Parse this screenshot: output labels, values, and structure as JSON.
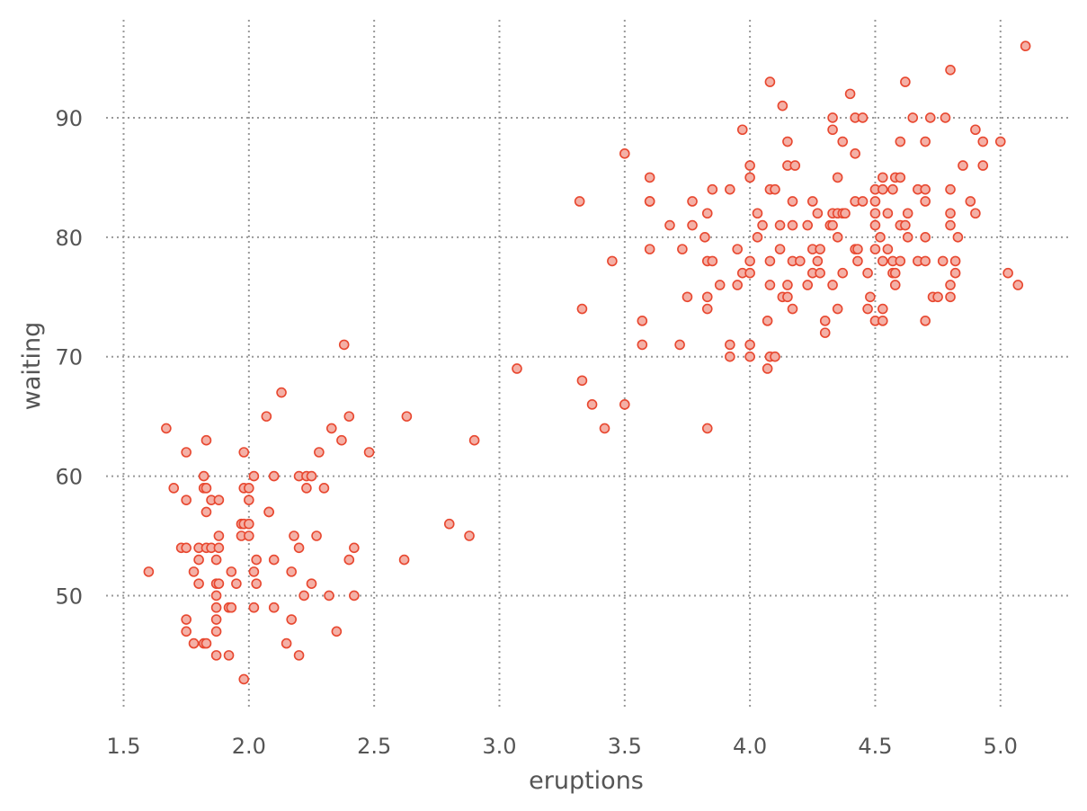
{
  "colors": {
    "marker_edge": "#e8472f",
    "marker_fill": "#f4b0a6",
    "grid": "#999999",
    "text": "#555555",
    "background": "#ffffff"
  },
  "chart_data": {
    "type": "scatter",
    "title": "",
    "xlabel": "eruptions",
    "ylabel": "waiting",
    "xlim": [
      1.43,
      5.27
    ],
    "ylim": [
      40.4,
      98.2
    ],
    "xticks": [
      1.5,
      2.0,
      2.5,
      3.0,
      3.5,
      4.0,
      4.5,
      5.0
    ],
    "xtick_labels": [
      "1.5",
      "2.0",
      "2.5",
      "3.0",
      "3.5",
      "4.0",
      "4.5",
      "5.0"
    ],
    "yticks": [
      50,
      60,
      70,
      80,
      90
    ],
    "ytick_labels": [
      "50",
      "60",
      "70",
      "80",
      "90"
    ],
    "grid": true,
    "legend": "none",
    "series": [
      {
        "points": [
          [
            1.6,
            52
          ],
          [
            1.67,
            64
          ],
          [
            1.7,
            59
          ],
          [
            1.73,
            54
          ],
          [
            1.75,
            54
          ],
          [
            1.75,
            62
          ],
          [
            1.75,
            58
          ],
          [
            1.75,
            48
          ],
          [
            1.75,
            47
          ],
          [
            1.78,
            52
          ],
          [
            1.78,
            46
          ],
          [
            1.8,
            54
          ],
          [
            1.8,
            53
          ],
          [
            1.8,
            51
          ],
          [
            1.82,
            60
          ],
          [
            1.82,
            59
          ],
          [
            1.82,
            46
          ],
          [
            1.83,
            63
          ],
          [
            1.83,
            59
          ],
          [
            1.83,
            57
          ],
          [
            1.83,
            54
          ],
          [
            1.83,
            46
          ],
          [
            1.85,
            58
          ],
          [
            1.85,
            54
          ],
          [
            1.87,
            53
          ],
          [
            1.87,
            51
          ],
          [
            1.87,
            50
          ],
          [
            1.87,
            49
          ],
          [
            1.87,
            48
          ],
          [
            1.87,
            47
          ],
          [
            1.87,
            45
          ],
          [
            1.88,
            58
          ],
          [
            1.88,
            55
          ],
          [
            1.88,
            54
          ],
          [
            1.88,
            51
          ],
          [
            1.92,
            49
          ],
          [
            1.92,
            45
          ],
          [
            1.93,
            52
          ],
          [
            1.93,
            49
          ],
          [
            1.95,
            51
          ],
          [
            1.97,
            56
          ],
          [
            1.97,
            55
          ],
          [
            1.98,
            62
          ],
          [
            1.98,
            59
          ],
          [
            1.98,
            56
          ],
          [
            1.98,
            43
          ],
          [
            2.0,
            59
          ],
          [
            2.0,
            58
          ],
          [
            2.0,
            56
          ],
          [
            2.0,
            55
          ],
          [
            2.02,
            60
          ],
          [
            2.02,
            52
          ],
          [
            2.02,
            49
          ],
          [
            2.03,
            53
          ],
          [
            2.03,
            51
          ],
          [
            2.07,
            65
          ],
          [
            2.08,
            57
          ],
          [
            2.08,
            57
          ],
          [
            2.1,
            60
          ],
          [
            2.1,
            53
          ],
          [
            2.1,
            49
          ],
          [
            2.13,
            67
          ],
          [
            2.15,
            46
          ],
          [
            2.17,
            52
          ],
          [
            2.17,
            48
          ],
          [
            2.18,
            55
          ],
          [
            2.2,
            60
          ],
          [
            2.2,
            54
          ],
          [
            2.2,
            45
          ],
          [
            2.22,
            50
          ],
          [
            2.23,
            60
          ],
          [
            2.23,
            59
          ],
          [
            2.25,
            60
          ],
          [
            2.25,
            51
          ],
          [
            2.27,
            55
          ],
          [
            2.28,
            62
          ],
          [
            2.3,
            59
          ],
          [
            2.32,
            50
          ],
          [
            2.33,
            64
          ],
          [
            2.35,
            47
          ],
          [
            2.37,
            63
          ],
          [
            2.38,
            71
          ],
          [
            2.4,
            65
          ],
          [
            2.4,
            53
          ],
          [
            2.42,
            54
          ],
          [
            2.42,
            50
          ],
          [
            2.48,
            62
          ],
          [
            2.62,
            53
          ],
          [
            2.63,
            65
          ],
          [
            2.8,
            56
          ],
          [
            2.88,
            55
          ],
          [
            2.9,
            63
          ],
          [
            3.07,
            69
          ],
          [
            3.32,
            83
          ],
          [
            3.33,
            74
          ],
          [
            3.33,
            68
          ],
          [
            3.37,
            66
          ],
          [
            3.42,
            64
          ],
          [
            3.45,
            78
          ],
          [
            3.5,
            87
          ],
          [
            3.5,
            66
          ],
          [
            3.57,
            73
          ],
          [
            3.57,
            71
          ],
          [
            3.6,
            85
          ],
          [
            3.6,
            83
          ],
          [
            3.6,
            83
          ],
          [
            3.6,
            79
          ],
          [
            3.68,
            81
          ],
          [
            3.72,
            71
          ],
          [
            3.73,
            79
          ],
          [
            3.75,
            75
          ],
          [
            3.77,
            83
          ],
          [
            3.77,
            81
          ],
          [
            3.82,
            80
          ],
          [
            3.83,
            82
          ],
          [
            3.83,
            78
          ],
          [
            3.83,
            75
          ],
          [
            3.83,
            74
          ],
          [
            3.83,
            64
          ],
          [
            3.85,
            84
          ],
          [
            3.85,
            78
          ],
          [
            3.88,
            76
          ],
          [
            3.92,
            84
          ],
          [
            3.92,
            71
          ],
          [
            3.92,
            70
          ],
          [
            3.95,
            79
          ],
          [
            3.95,
            76
          ],
          [
            3.97,
            89
          ],
          [
            3.97,
            77
          ],
          [
            4.0,
            86
          ],
          [
            4.0,
            85
          ],
          [
            4.0,
            78
          ],
          [
            4.0,
            77
          ],
          [
            4.0,
            71
          ],
          [
            4.0,
            70
          ],
          [
            4.03,
            82
          ],
          [
            4.03,
            80
          ],
          [
            4.05,
            81
          ],
          [
            4.07,
            73
          ],
          [
            4.07,
            69
          ],
          [
            4.08,
            93
          ],
          [
            4.08,
            84
          ],
          [
            4.08,
            78
          ],
          [
            4.08,
            76
          ],
          [
            4.08,
            70
          ],
          [
            4.1,
            84
          ],
          [
            4.1,
            70
          ],
          [
            4.12,
            81
          ],
          [
            4.12,
            79
          ],
          [
            4.13,
            91
          ],
          [
            4.13,
            75
          ],
          [
            4.15,
            88
          ],
          [
            4.15,
            86
          ],
          [
            4.15,
            76
          ],
          [
            4.15,
            75
          ],
          [
            4.17,
            83
          ],
          [
            4.17,
            81
          ],
          [
            4.17,
            78
          ],
          [
            4.17,
            74
          ],
          [
            4.18,
            86
          ],
          [
            4.2,
            78
          ],
          [
            4.23,
            81
          ],
          [
            4.23,
            76
          ],
          [
            4.25,
            83
          ],
          [
            4.25,
            79
          ],
          [
            4.25,
            77
          ],
          [
            4.27,
            82
          ],
          [
            4.27,
            78
          ],
          [
            4.28,
            79
          ],
          [
            4.28,
            77
          ],
          [
            4.3,
            73
          ],
          [
            4.3,
            72
          ],
          [
            4.32,
            81
          ],
          [
            4.33,
            90
          ],
          [
            4.33,
            89
          ],
          [
            4.33,
            82
          ],
          [
            4.33,
            81
          ],
          [
            4.33,
            76
          ],
          [
            4.35,
            85
          ],
          [
            4.35,
            82
          ],
          [
            4.35,
            80
          ],
          [
            4.35,
            74
          ],
          [
            4.37,
            88
          ],
          [
            4.37,
            82
          ],
          [
            4.37,
            77
          ],
          [
            4.38,
            82
          ],
          [
            4.4,
            92
          ],
          [
            4.42,
            90
          ],
          [
            4.42,
            87
          ],
          [
            4.42,
            83
          ],
          [
            4.42,
            79
          ],
          [
            4.43,
            79
          ],
          [
            4.43,
            78
          ],
          [
            4.45,
            90
          ],
          [
            4.45,
            83
          ],
          [
            4.47,
            77
          ],
          [
            4.47,
            74
          ],
          [
            4.48,
            75
          ],
          [
            4.5,
            84
          ],
          [
            4.5,
            83
          ],
          [
            4.5,
            82
          ],
          [
            4.5,
            81
          ],
          [
            4.5,
            79
          ],
          [
            4.5,
            73
          ],
          [
            4.52,
            80
          ],
          [
            4.53,
            85
          ],
          [
            4.53,
            84
          ],
          [
            4.53,
            78
          ],
          [
            4.53,
            74
          ],
          [
            4.53,
            73
          ],
          [
            4.55,
            82
          ],
          [
            4.55,
            79
          ],
          [
            4.57,
            84
          ],
          [
            4.57,
            78
          ],
          [
            4.57,
            77
          ],
          [
            4.58,
            85
          ],
          [
            4.58,
            77
          ],
          [
            4.58,
            76
          ],
          [
            4.6,
            88
          ],
          [
            4.6,
            85
          ],
          [
            4.6,
            81
          ],
          [
            4.6,
            78
          ],
          [
            4.62,
            93
          ],
          [
            4.62,
            81
          ],
          [
            4.63,
            82
          ],
          [
            4.63,
            80
          ],
          [
            4.65,
            90
          ],
          [
            4.67,
            84
          ],
          [
            4.67,
            78
          ],
          [
            4.7,
            88
          ],
          [
            4.7,
            84
          ],
          [
            4.7,
            83
          ],
          [
            4.7,
            80
          ],
          [
            4.7,
            78
          ],
          [
            4.7,
            73
          ],
          [
            4.72,
            90
          ],
          [
            4.73,
            75
          ],
          [
            4.75,
            75
          ],
          [
            4.77,
            78
          ],
          [
            4.78,
            90
          ],
          [
            4.8,
            94
          ],
          [
            4.8,
            84
          ],
          [
            4.8,
            82
          ],
          [
            4.8,
            81
          ],
          [
            4.8,
            76
          ],
          [
            4.8,
            75
          ],
          [
            4.82,
            78
          ],
          [
            4.82,
            77
          ],
          [
            4.83,
            80
          ],
          [
            4.85,
            86
          ],
          [
            4.88,
            83
          ],
          [
            4.9,
            89
          ],
          [
            4.9,
            82
          ],
          [
            4.93,
            88
          ],
          [
            4.93,
            86
          ],
          [
            5.0,
            88
          ],
          [
            5.03,
            77
          ],
          [
            5.07,
            76
          ],
          [
            5.1,
            96
          ]
        ]
      }
    ]
  }
}
